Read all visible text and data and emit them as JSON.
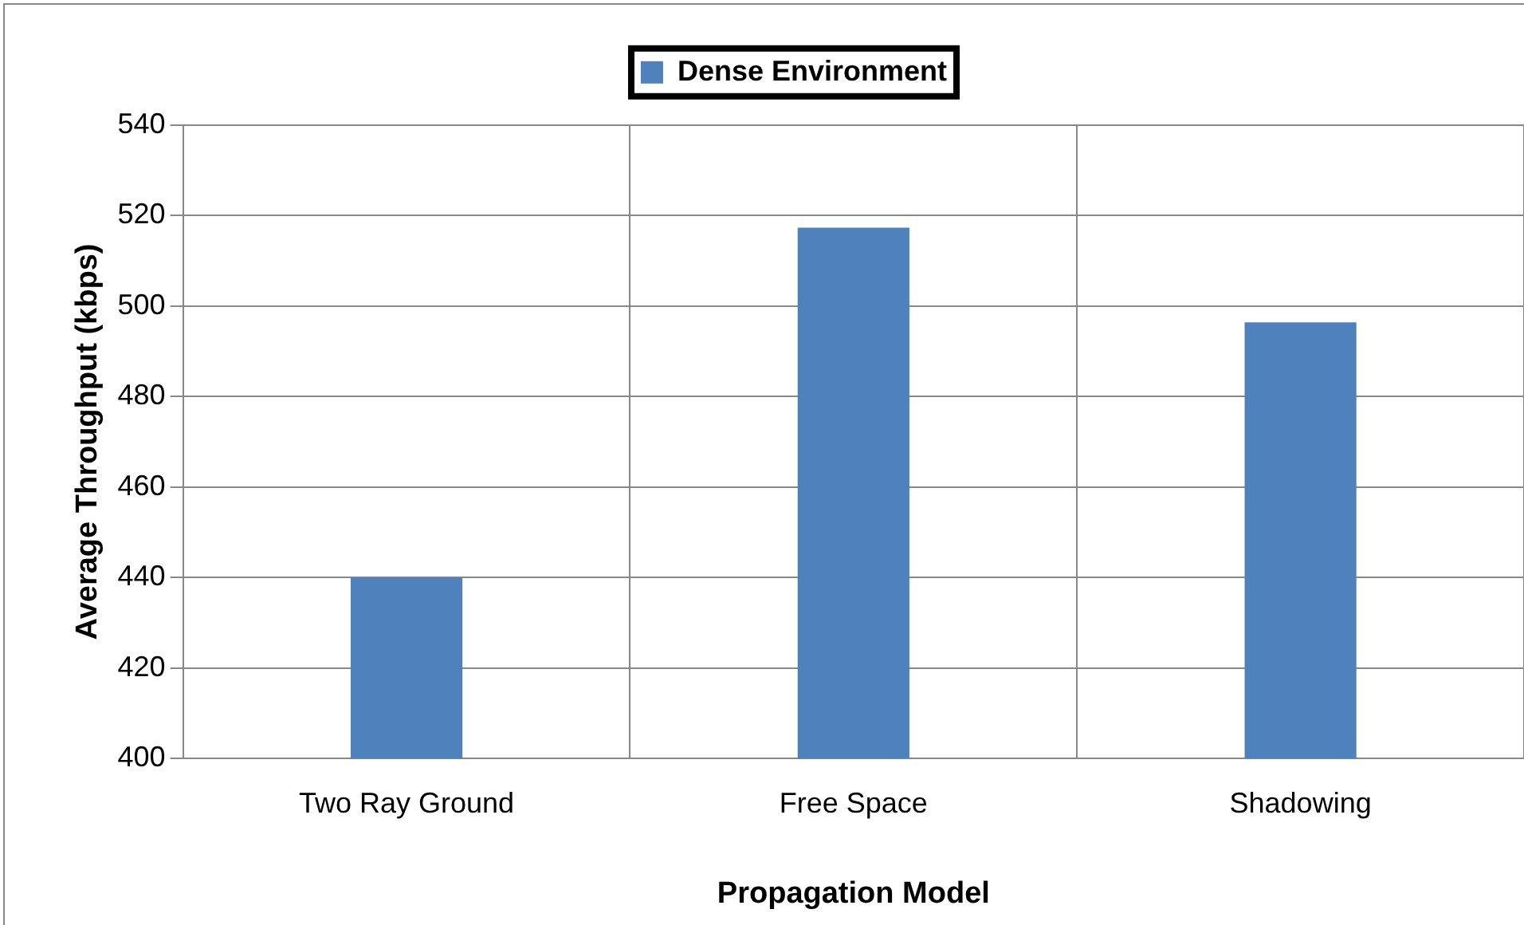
{
  "chart_data": {
    "type": "bar",
    "xlabel": "Propagation Model",
    "ylabel": "Average Throughput (kbps)",
    "categories": [
      "Two Ray Ground",
      "Free Space",
      "Shadowing"
    ],
    "series": [
      {
        "name": "Dense Environment",
        "color": "#4f81bd",
        "values": [
          440,
          517.3,
          496.4
        ]
      }
    ],
    "ylim": [
      400,
      540
    ],
    "yticks": [
      400,
      420,
      440,
      460,
      480,
      500,
      520,
      540
    ],
    "grid": true,
    "legend": "top"
  }
}
